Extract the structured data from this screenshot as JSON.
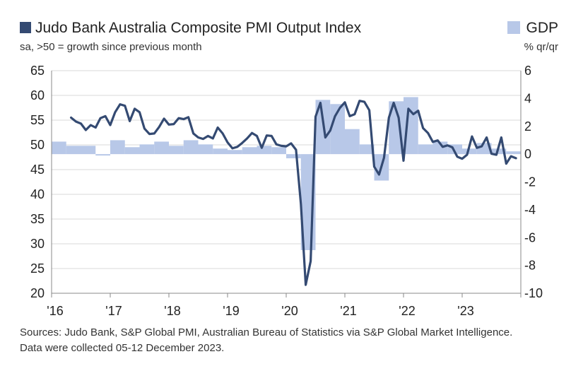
{
  "chart_data": {
    "type": "line+bar",
    "title": "Judo Bank Australia Composite PMI Output Index",
    "subtitle": "sa, >50 = growth since previous month",
    "left_axis": {
      "ylim": [
        20,
        65
      ],
      "ticks": [
        20,
        25,
        30,
        35,
        40,
        45,
        50,
        55,
        60,
        65
      ]
    },
    "right_axis": {
      "label": "% qr/qr",
      "ylim": [
        -10,
        6
      ],
      "ticks": [
        -10,
        -8,
        -6,
        -4,
        -2,
        0,
        2,
        4,
        6
      ]
    },
    "x_ticks": [
      "'16",
      "'17",
      "'18",
      "'19",
      "'20",
      "'21",
      "'22",
      "'23"
    ],
    "x_range": [
      2016.0,
      2024.0
    ],
    "series": [
      {
        "name": "Judo Bank Australia Composite PMI Output Index",
        "type": "line",
        "axis": "left",
        "color": "#344a72",
        "x": [
          2016.333,
          2016.417,
          2016.5,
          2016.583,
          2016.667,
          2016.75,
          2016.833,
          2016.917,
          2017.0,
          2017.083,
          2017.167,
          2017.25,
          2017.333,
          2017.417,
          2017.5,
          2017.583,
          2017.667,
          2017.75,
          2017.833,
          2017.917,
          2018.0,
          2018.083,
          2018.167,
          2018.25,
          2018.333,
          2018.417,
          2018.5,
          2018.583,
          2018.667,
          2018.75,
          2018.833,
          2018.917,
          2019.0,
          2019.083,
          2019.167,
          2019.25,
          2019.333,
          2019.417,
          2019.5,
          2019.583,
          2019.667,
          2019.75,
          2019.833,
          2019.917,
          2020.0,
          2020.083,
          2020.167,
          2020.25,
          2020.333,
          2020.417,
          2020.5,
          2020.583,
          2020.667,
          2020.75,
          2020.833,
          2020.917,
          2021.0,
          2021.083,
          2021.167,
          2021.25,
          2021.333,
          2021.417,
          2021.5,
          2021.583,
          2021.667,
          2021.75,
          2021.833,
          2021.917,
          2022.0,
          2022.083,
          2022.167,
          2022.25,
          2022.333,
          2022.417,
          2022.5,
          2022.583,
          2022.667,
          2022.75,
          2022.833,
          2022.917,
          2023.0,
          2023.083,
          2023.167,
          2023.25,
          2023.333,
          2023.417,
          2023.5,
          2023.583,
          2023.667,
          2023.75,
          2023.833,
          2023.917
        ],
        "values": [
          55.5,
          54.7,
          54.3,
          53.0,
          54.0,
          53.5,
          55.4,
          55.8,
          54.0,
          56.6,
          58.2,
          57.9,
          54.8,
          57.3,
          56.6,
          53.3,
          52.2,
          52.3,
          53.6,
          55.3,
          54.1,
          54.2,
          55.4,
          55.2,
          55.6,
          52.3,
          51.5,
          51.2,
          51.8,
          51.3,
          53.5,
          52.3,
          50.5,
          49.3,
          49.6,
          50.4,
          51.3,
          52.4,
          51.8,
          49.4,
          51.9,
          51.8,
          50.1,
          49.8,
          49.7,
          50.3,
          49.0,
          38.0,
          21.7,
          26.5,
          55.7,
          58.5,
          51.5,
          52.9,
          55.8,
          57.5,
          58.6,
          55.8,
          56.2,
          58.9,
          58.7,
          57.0,
          45.6,
          44.0,
          47.4,
          55.5,
          58.5,
          55.5,
          46.8,
          57.3,
          56.2,
          56.9,
          53.4,
          52.4,
          50.6,
          50.9,
          49.6,
          49.9,
          49.5,
          47.6,
          47.2,
          48.0,
          51.7,
          49.4,
          49.7,
          51.5,
          48.2,
          48.0,
          51.5,
          46.2,
          47.7,
          47.3
        ]
      },
      {
        "name": "GDP",
        "type": "bar",
        "axis": "right",
        "color": "#b8c8e8",
        "x": [
          2016.0,
          2016.25,
          2016.5,
          2016.75,
          2017.0,
          2017.25,
          2017.5,
          2017.75,
          2018.0,
          2018.25,
          2018.5,
          2018.75,
          2019.0,
          2019.25,
          2019.5,
          2019.75,
          2020.0,
          2020.25,
          2020.5,
          2020.75,
          2021.0,
          2021.25,
          2021.5,
          2021.75,
          2022.0,
          2022.25,
          2022.5,
          2022.75,
          2023.0,
          2023.25,
          2023.5,
          2023.75
        ],
        "values": [
          0.9,
          0.6,
          0.6,
          -0.1,
          1.0,
          0.5,
          0.7,
          0.9,
          0.6,
          1.0,
          0.7,
          0.4,
          0.3,
          0.5,
          0.6,
          0.5,
          -0.3,
          -6.9,
          3.9,
          3.6,
          1.8,
          0.7,
          -1.9,
          3.8,
          4.1,
          0.7,
          0.9,
          0.7,
          0.4,
          0.8,
          0.4,
          0.2
        ]
      }
    ]
  },
  "header": {
    "title": "Judo Bank Australia Composite PMI Output Index",
    "legend_gdp": "GDP",
    "subtitle": "sa, >50 = growth since previous month",
    "right_unit": "% qr/qr"
  },
  "footer": {
    "sources": "Sources: Judo Bank, S&P Global PMI, Australian Bureau of Statistics via S&P Global Market Intelligence.",
    "collected": "Data were collected 05-12 December 2023."
  }
}
